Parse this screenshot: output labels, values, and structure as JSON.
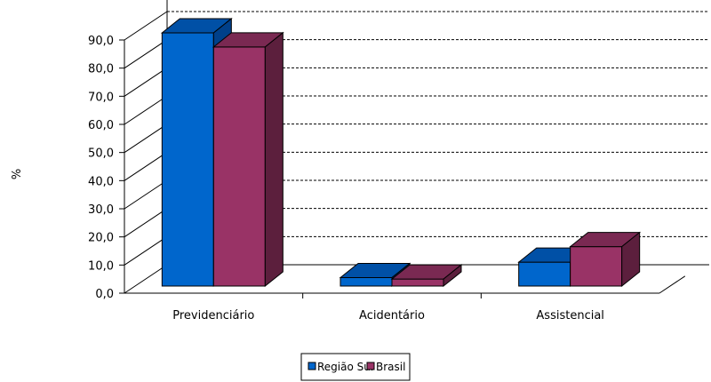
{
  "chart_data": {
    "type": "bar",
    "title": "",
    "xlabel": "",
    "ylabel": "%",
    "ylim": [
      0,
      90
    ],
    "yticks": [
      "0,0",
      "10,0",
      "20,0",
      "30,0",
      "40,0",
      "50,0",
      "60,0",
      "70,0",
      "80,0",
      "90,0"
    ],
    "categories": [
      "Previdenciário",
      "Acidentário",
      "Assistencial"
    ],
    "series": [
      {
        "name": "Região Sul",
        "values": [
          90.0,
          3.0,
          8.5
        ]
      },
      {
        "name": "Brasil",
        "values": [
          85.0,
          2.5,
          14.0
        ]
      }
    ],
    "grid": true,
    "legend_position": "bottom",
    "three_d": true
  },
  "colors": {
    "Região Sul": {
      "front": "#0066cc",
      "side": "#00408a",
      "top": "#0050a6"
    },
    "Brasil": {
      "front": "#993366",
      "side": "#5c1f3d",
      "top": "#7a2952"
    },
    "grid": "#000000",
    "axis": "#000000"
  }
}
